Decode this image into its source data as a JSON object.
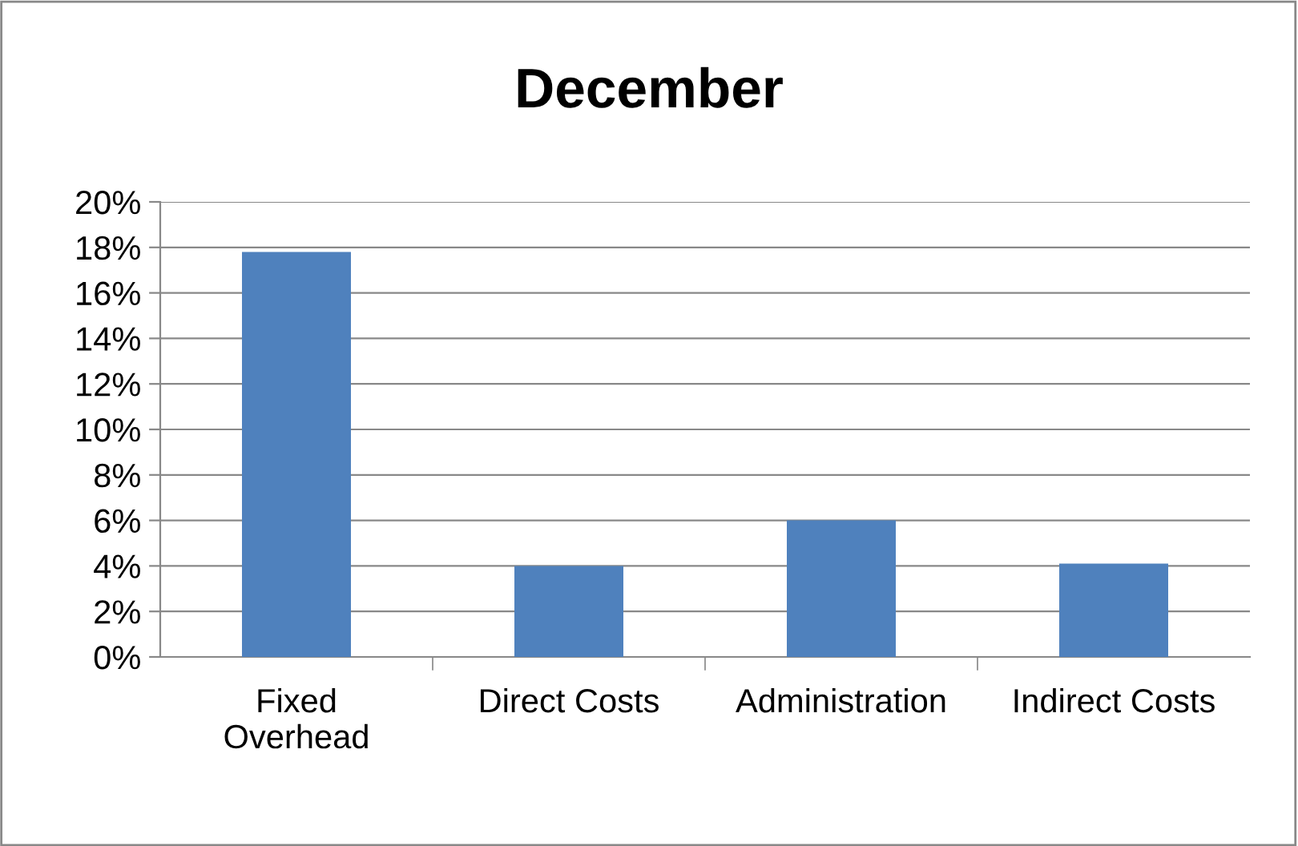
{
  "chart_data": {
    "type": "bar",
    "title": "December",
    "categories": [
      "Fixed\nOverhead",
      "Direct Costs",
      "Administration",
      "Indirect Costs"
    ],
    "values": [
      17.8,
      4.0,
      6.0,
      4.1
    ],
    "color": "#4f81bd",
    "ylim": [
      0,
      20
    ],
    "yticks": [
      {
        "value": 0,
        "label": "0%"
      },
      {
        "value": 2,
        "label": "2%"
      },
      {
        "value": 4,
        "label": "4%"
      },
      {
        "value": 6,
        "label": "6%"
      },
      {
        "value": 8,
        "label": "8%"
      },
      {
        "value": 10,
        "label": "10%"
      },
      {
        "value": 12,
        "label": "12%"
      },
      {
        "value": 14,
        "label": "14%"
      },
      {
        "value": 16,
        "label": "16%"
      },
      {
        "value": 18,
        "label": "18%"
      },
      {
        "value": 20,
        "label": "20%"
      }
    ],
    "grid": "y",
    "legend": false
  }
}
